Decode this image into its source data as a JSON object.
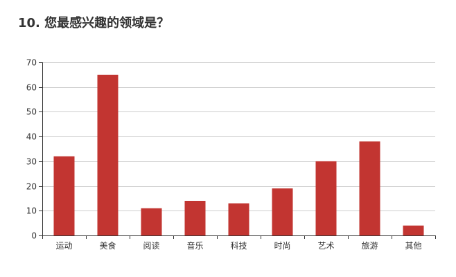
{
  "page": {
    "title": "10. 您最感兴趣的领域是？"
  },
  "chart_data": {
    "type": "bar",
    "title": "10. 您最感兴趣的领域是？",
    "categories": [
      "运动",
      "美食",
      "阅读",
      "音乐",
      "科技",
      "时尚",
      "艺术",
      "旅游",
      "其他"
    ],
    "values": [
      32,
      65,
      11,
      14,
      13,
      19,
      30,
      38,
      4
    ],
    "xlabel": "",
    "ylabel": "",
    "ylim": [
      0,
      70
    ],
    "yticks": [
      0,
      10,
      20,
      30,
      40,
      50,
      60,
      70
    ],
    "grid": true,
    "legend": "none",
    "bar_color": "#c23531",
    "grid_color": "#cccccc",
    "axis_color": "#333333"
  }
}
